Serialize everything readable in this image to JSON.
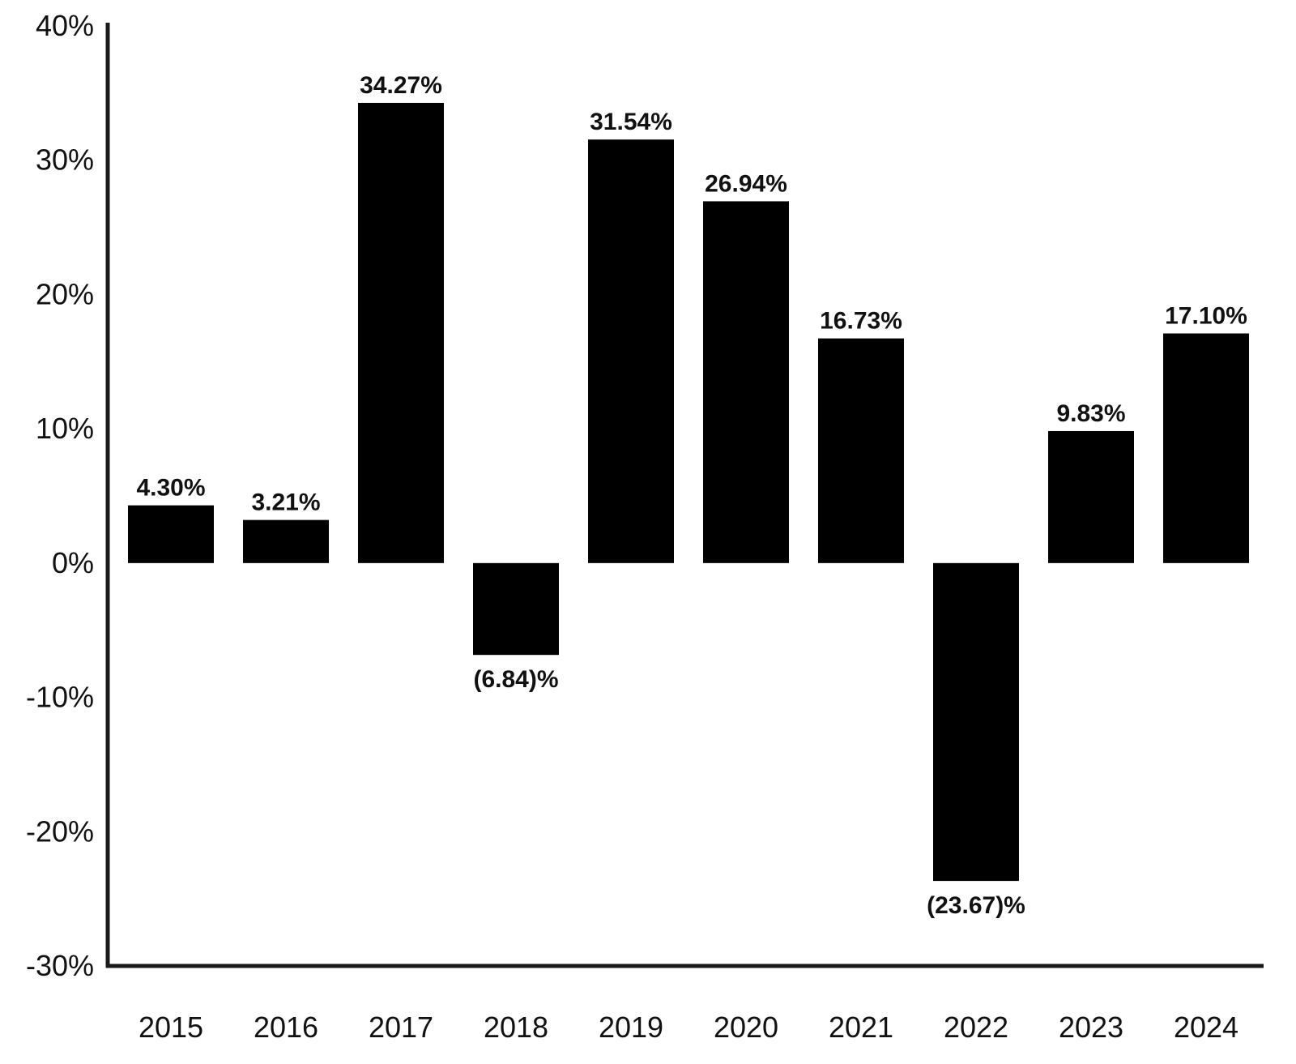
{
  "chart_data": {
    "type": "bar",
    "categories": [
      "2015",
      "2016",
      "2017",
      "2018",
      "2019",
      "2020",
      "2021",
      "2022",
      "2023",
      "2024"
    ],
    "values": [
      4.3,
      3.21,
      34.27,
      -6.84,
      31.54,
      26.94,
      16.73,
      -23.67,
      9.83,
      17.1
    ],
    "data_labels": [
      "4.30%",
      "3.21%",
      "34.27%",
      "(6.84)%",
      "31.54%",
      "26.94%",
      "16.73%",
      "(23.67)%",
      "9.83%",
      "17.10%"
    ],
    "yticks": [
      40,
      30,
      20,
      10,
      0,
      -10,
      -20,
      -30
    ],
    "ytick_labels": [
      "40%",
      "30%",
      "20%",
      "10%",
      "0%",
      "-10%",
      "-20%",
      "-30%"
    ],
    "ylim": [
      -30,
      40
    ],
    "title": "",
    "xlabel": "",
    "ylabel": "",
    "grid": false,
    "legend": "none",
    "colors": {
      "bar": "#000000",
      "axis": "#1a1a1a",
      "text": "#111111",
      "background": "#ffffff"
    }
  }
}
